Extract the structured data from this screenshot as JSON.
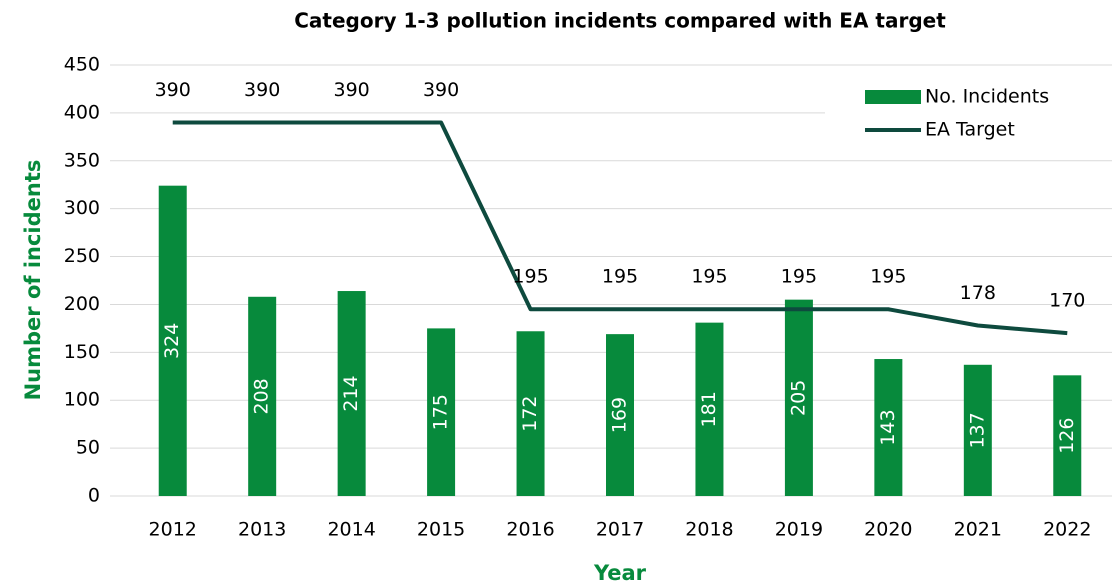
{
  "chart_data": {
    "type": "bar",
    "title": "Category 1-3 pollution incidents compared with EA target",
    "xlabel": "Year",
    "ylabel": "Number of incidents",
    "categories": [
      "2012",
      "2013",
      "2014",
      "2015",
      "2016",
      "2017",
      "2018",
      "2019",
      "2020",
      "2021",
      "2022"
    ],
    "series": [
      {
        "name": "No. Incidents",
        "type": "bar",
        "color": "#078a3c",
        "values": [
          324,
          208,
          214,
          175,
          172,
          169,
          181,
          205,
          143,
          137,
          126
        ]
      },
      {
        "name": "EA Target",
        "type": "line",
        "color": "#0e4a3e",
        "values": [
          390,
          390,
          390,
          390,
          195,
          195,
          195,
          195,
          195,
          178,
          170
        ]
      }
    ],
    "ylim": [
      0,
      450
    ],
    "yticks": [
      0,
      50,
      100,
      150,
      200,
      250,
      300,
      350,
      400,
      450
    ],
    "grid": true,
    "legend": "top-right"
  }
}
